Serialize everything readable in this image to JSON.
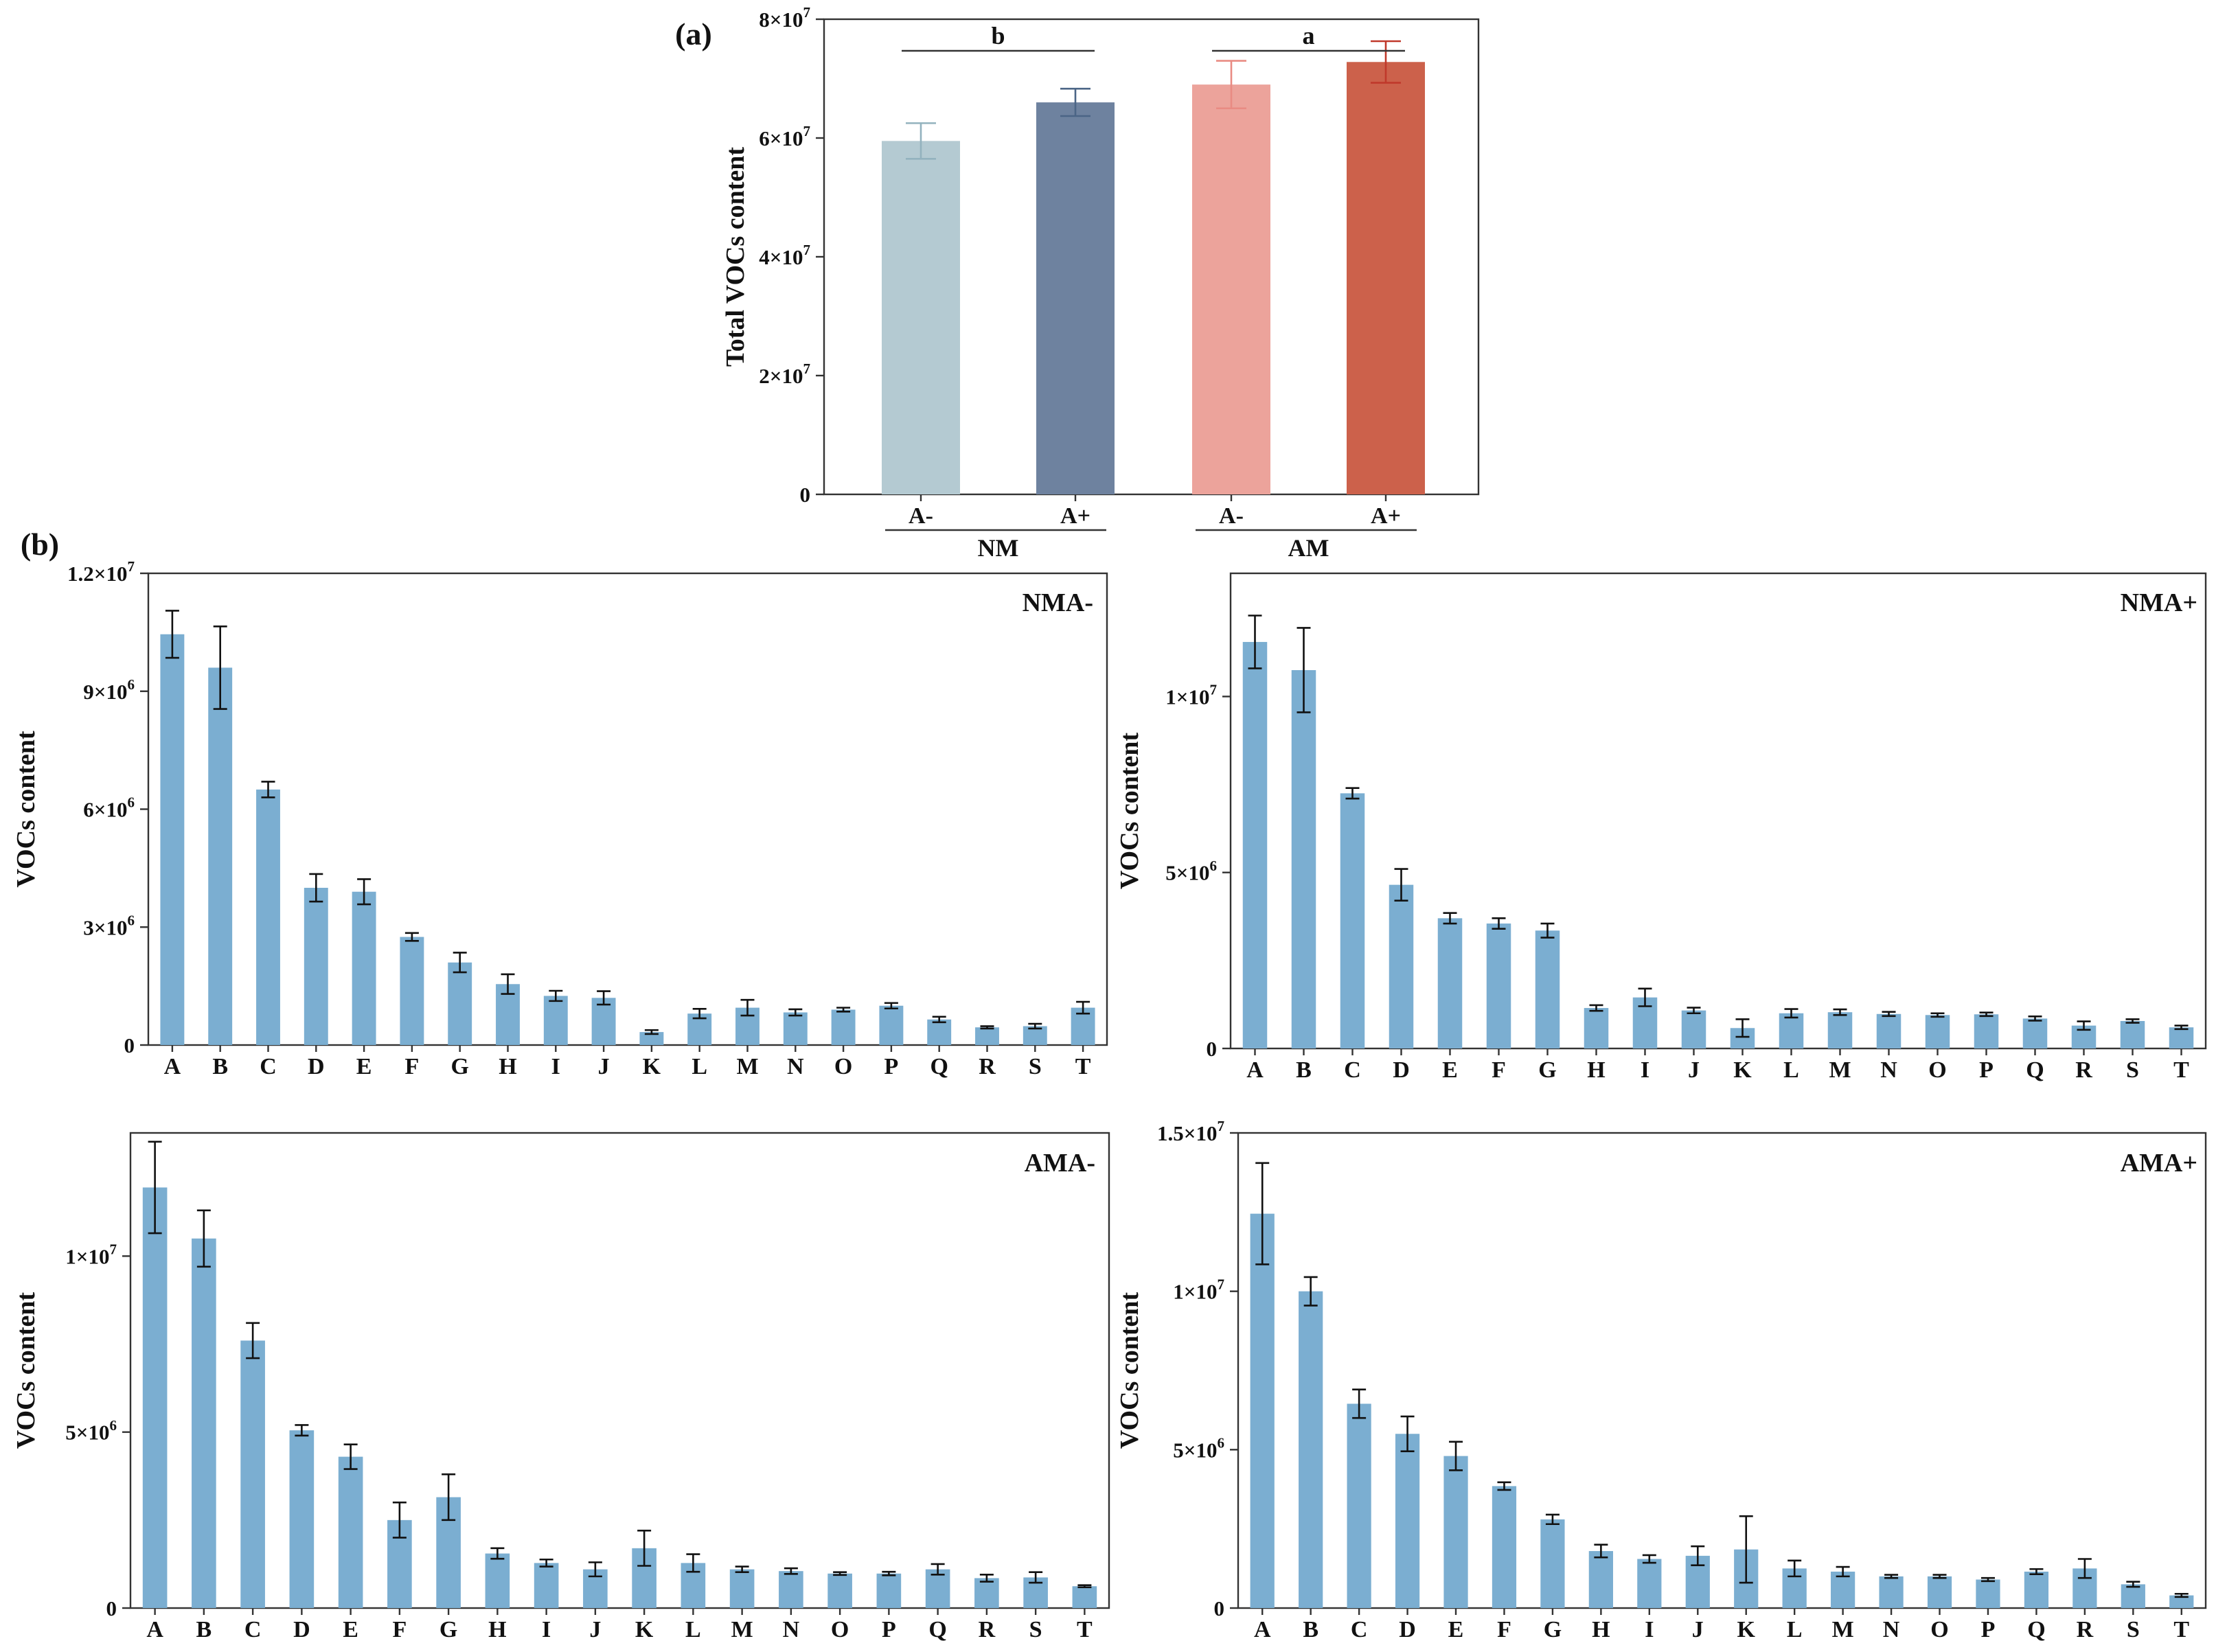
{
  "chart_data": [
    {
      "id": "a",
      "panel_label": "(a)",
      "type": "bar",
      "ylabel": "Total VOCs content",
      "ylim": [
        0,
        80000000
      ],
      "yticks": [
        {
          "value": 0,
          "label": "0"
        },
        {
          "value": 20000000,
          "label": "2×10",
          "exp": "7"
        },
        {
          "value": 40000000,
          "label": "4×10",
          "exp": "7"
        },
        {
          "value": 60000000,
          "label": "6×10",
          "exp": "7"
        },
        {
          "value": 80000000,
          "label": "8×10",
          "exp": "7"
        }
      ],
      "categories": [
        "A-",
        "A+",
        "A-",
        "A+"
      ],
      "values": [
        59500000,
        66000000,
        69000000,
        72800000
      ],
      "errors": [
        3000000,
        2300000,
        4000000,
        3500000
      ],
      "colors": [
        "#b4cad2",
        "#6e829f",
        "#eca39b",
        "#cc614b"
      ],
      "error_colors": [
        "#93b2be",
        "#4b6586",
        "#e98b83",
        "#c0392b"
      ],
      "groups": [
        {
          "label": "NM",
          "letter": "b",
          "members": [
            0,
            1
          ]
        },
        {
          "label": "AM",
          "letter": "a",
          "members": [
            2,
            3
          ]
        }
      ]
    },
    {
      "id": "b1",
      "panel_label": "(b)",
      "type": "bar",
      "title": "NMA-",
      "ylabel": "VOCs content",
      "ylim": [
        0,
        12000000
      ],
      "yticks": [
        {
          "value": 0,
          "label": "0"
        },
        {
          "value": 3000000,
          "label": "3×10",
          "exp": "6"
        },
        {
          "value": 6000000,
          "label": "6×10",
          "exp": "6"
        },
        {
          "value": 9000000,
          "label": "9×10",
          "exp": "6"
        },
        {
          "value": 12000000,
          "label": "1.2×10",
          "exp": "7"
        }
      ],
      "categories": [
        "A",
        "B",
        "C",
        "D",
        "E",
        "F",
        "G",
        "H",
        "I",
        "J",
        "K",
        "L",
        "M",
        "N",
        "O",
        "P",
        "Q",
        "R",
        "S",
        "T"
      ],
      "values": [
        10450000,
        9600000,
        6500000,
        4000000,
        3900000,
        2750000,
        2100000,
        1550000,
        1250000,
        1200000,
        330000,
        800000,
        950000,
        830000,
        900000,
        1000000,
        650000,
        450000,
        480000,
        950000
      ],
      "errors": [
        600000,
        1050000,
        200000,
        350000,
        320000,
        100000,
        250000,
        250000,
        130000,
        170000,
        50000,
        120000,
        200000,
        80000,
        50000,
        70000,
        70000,
        30000,
        60000,
        150000
      ],
      "color": "#7baed1"
    },
    {
      "id": "b2",
      "type": "bar",
      "title": "NMA+",
      "ylabel": "VOCs content",
      "ylim": [
        0,
        13500000
      ],
      "yticks": [
        {
          "value": 0,
          "label": "0"
        },
        {
          "value": 5000000,
          "label": "5×10",
          "exp": "6"
        },
        {
          "value": 10000000,
          "label": "1×10",
          "exp": "7"
        }
      ],
      "categories": [
        "A",
        "B",
        "C",
        "D",
        "E",
        "F",
        "G",
        "H",
        "I",
        "J",
        "K",
        "L",
        "M",
        "N",
        "O",
        "P",
        "Q",
        "R",
        "S",
        "T"
      ],
      "values": [
        11550000,
        10750000,
        7250000,
        4650000,
        3700000,
        3550000,
        3350000,
        1150000,
        1450000,
        1080000,
        580000,
        1000000,
        1030000,
        980000,
        950000,
        970000,
        850000,
        650000,
        780000,
        600000
      ],
      "errors": [
        750000,
        1200000,
        150000,
        450000,
        150000,
        150000,
        200000,
        80000,
        250000,
        80000,
        250000,
        120000,
        80000,
        60000,
        50000,
        50000,
        60000,
        120000,
        50000,
        50000
      ],
      "color": "#7baed1"
    },
    {
      "id": "b3",
      "type": "bar",
      "title": "AMA-",
      "ylabel": "VOCs content",
      "ylim": [
        0,
        13500000
      ],
      "yticks": [
        {
          "value": 0,
          "label": "0"
        },
        {
          "value": 5000000,
          "label": "5×10",
          "exp": "6"
        },
        {
          "value": 10000000,
          "label": "1×10",
          "exp": "7"
        }
      ],
      "categories": [
        "A",
        "B",
        "C",
        "D",
        "E",
        "F",
        "G",
        "H",
        "I",
        "J",
        "K",
        "L",
        "M",
        "N",
        "O",
        "P",
        "Q",
        "R",
        "S",
        "T"
      ],
      "values": [
        11950000,
        10500000,
        7600000,
        5050000,
        4300000,
        2500000,
        3150000,
        1550000,
        1280000,
        1100000,
        1700000,
        1280000,
        1100000,
        1050000,
        980000,
        980000,
        1100000,
        850000,
        870000,
        620000
      ],
      "errors": [
        1300000,
        800000,
        500000,
        150000,
        350000,
        500000,
        650000,
        150000,
        100000,
        200000,
        500000,
        250000,
        80000,
        80000,
        40000,
        50000,
        150000,
        100000,
        150000,
        30000
      ],
      "color": "#7baed1"
    },
    {
      "id": "b4",
      "type": "bar",
      "title": "AMA+",
      "ylabel": "VOCs content",
      "ylim": [
        0,
        15000000
      ],
      "yticks": [
        {
          "value": 0,
          "label": "0"
        },
        {
          "value": 5000000,
          "label": "5×10",
          "exp": "6"
        },
        {
          "value": 10000000,
          "label": "1×10",
          "exp": "7"
        },
        {
          "value": 15000000,
          "label": "1.5×10",
          "exp": "7"
        }
      ],
      "categories": [
        "A",
        "B",
        "C",
        "D",
        "E",
        "F",
        "G",
        "H",
        "I",
        "J",
        "K",
        "L",
        "M",
        "N",
        "O",
        "P",
        "Q",
        "R",
        "S",
        "T"
      ],
      "values": [
        12450000,
        10000000,
        6450000,
        5500000,
        4800000,
        3850000,
        2800000,
        1800000,
        1550000,
        1650000,
        1850000,
        1250000,
        1150000,
        1000000,
        1000000,
        900000,
        1150000,
        1250000,
        750000,
        400000
      ],
      "errors": [
        1600000,
        450000,
        450000,
        550000,
        450000,
        120000,
        150000,
        200000,
        120000,
        300000,
        1050000,
        250000,
        150000,
        50000,
        50000,
        50000,
        80000,
        300000,
        80000,
        50000
      ],
      "color": "#7baed1"
    }
  ]
}
